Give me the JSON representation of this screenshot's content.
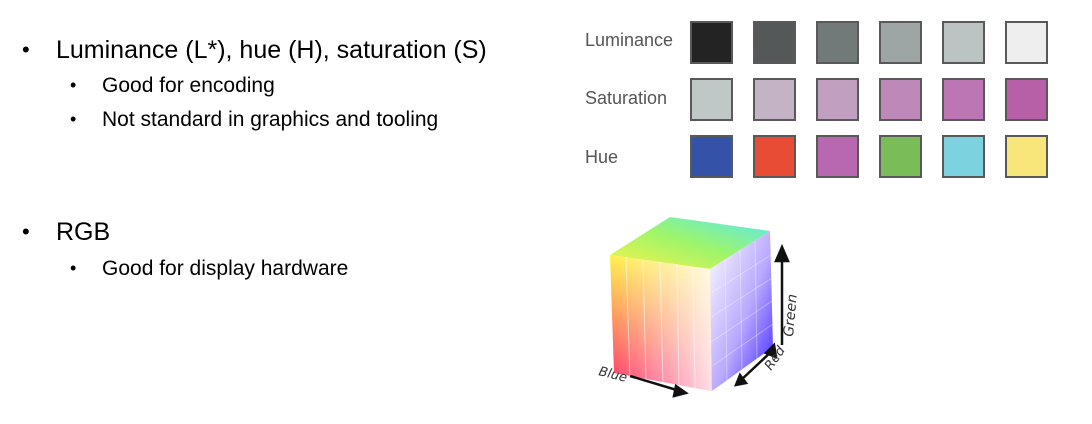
{
  "bullets": {
    "item1": {
      "text": "Luminance (L*), hue (H), saturation (S)",
      "sub": [
        "Good for encoding",
        "Not standard in graphics and tooling"
      ]
    },
    "item2": {
      "text": "RGB",
      "sub": [
        "Good for display hardware"
      ]
    }
  },
  "swatch_grid": {
    "rows": [
      {
        "label": "Luminance",
        "colors": [
          "#232323",
          "#555859",
          "#727a79",
          "#9ea5a5",
          "#bcc3c3",
          "#eeeeee"
        ]
      },
      {
        "label": "Saturation",
        "colors": [
          "#c0c7c7",
          "#c3b3c5",
          "#c19fc0",
          "#bd89b9",
          "#bb76b3",
          "#b760a7"
        ]
      },
      {
        "label": "Hue",
        "colors": [
          "#3453a8",
          "#e84c35",
          "#b768af",
          "#7abc57",
          "#7dd2e0",
          "#f9e67a"
        ]
      }
    ]
  },
  "cube": {
    "axis_labels": {
      "blue": "Blue",
      "red": "Red",
      "green": "Green"
    }
  }
}
